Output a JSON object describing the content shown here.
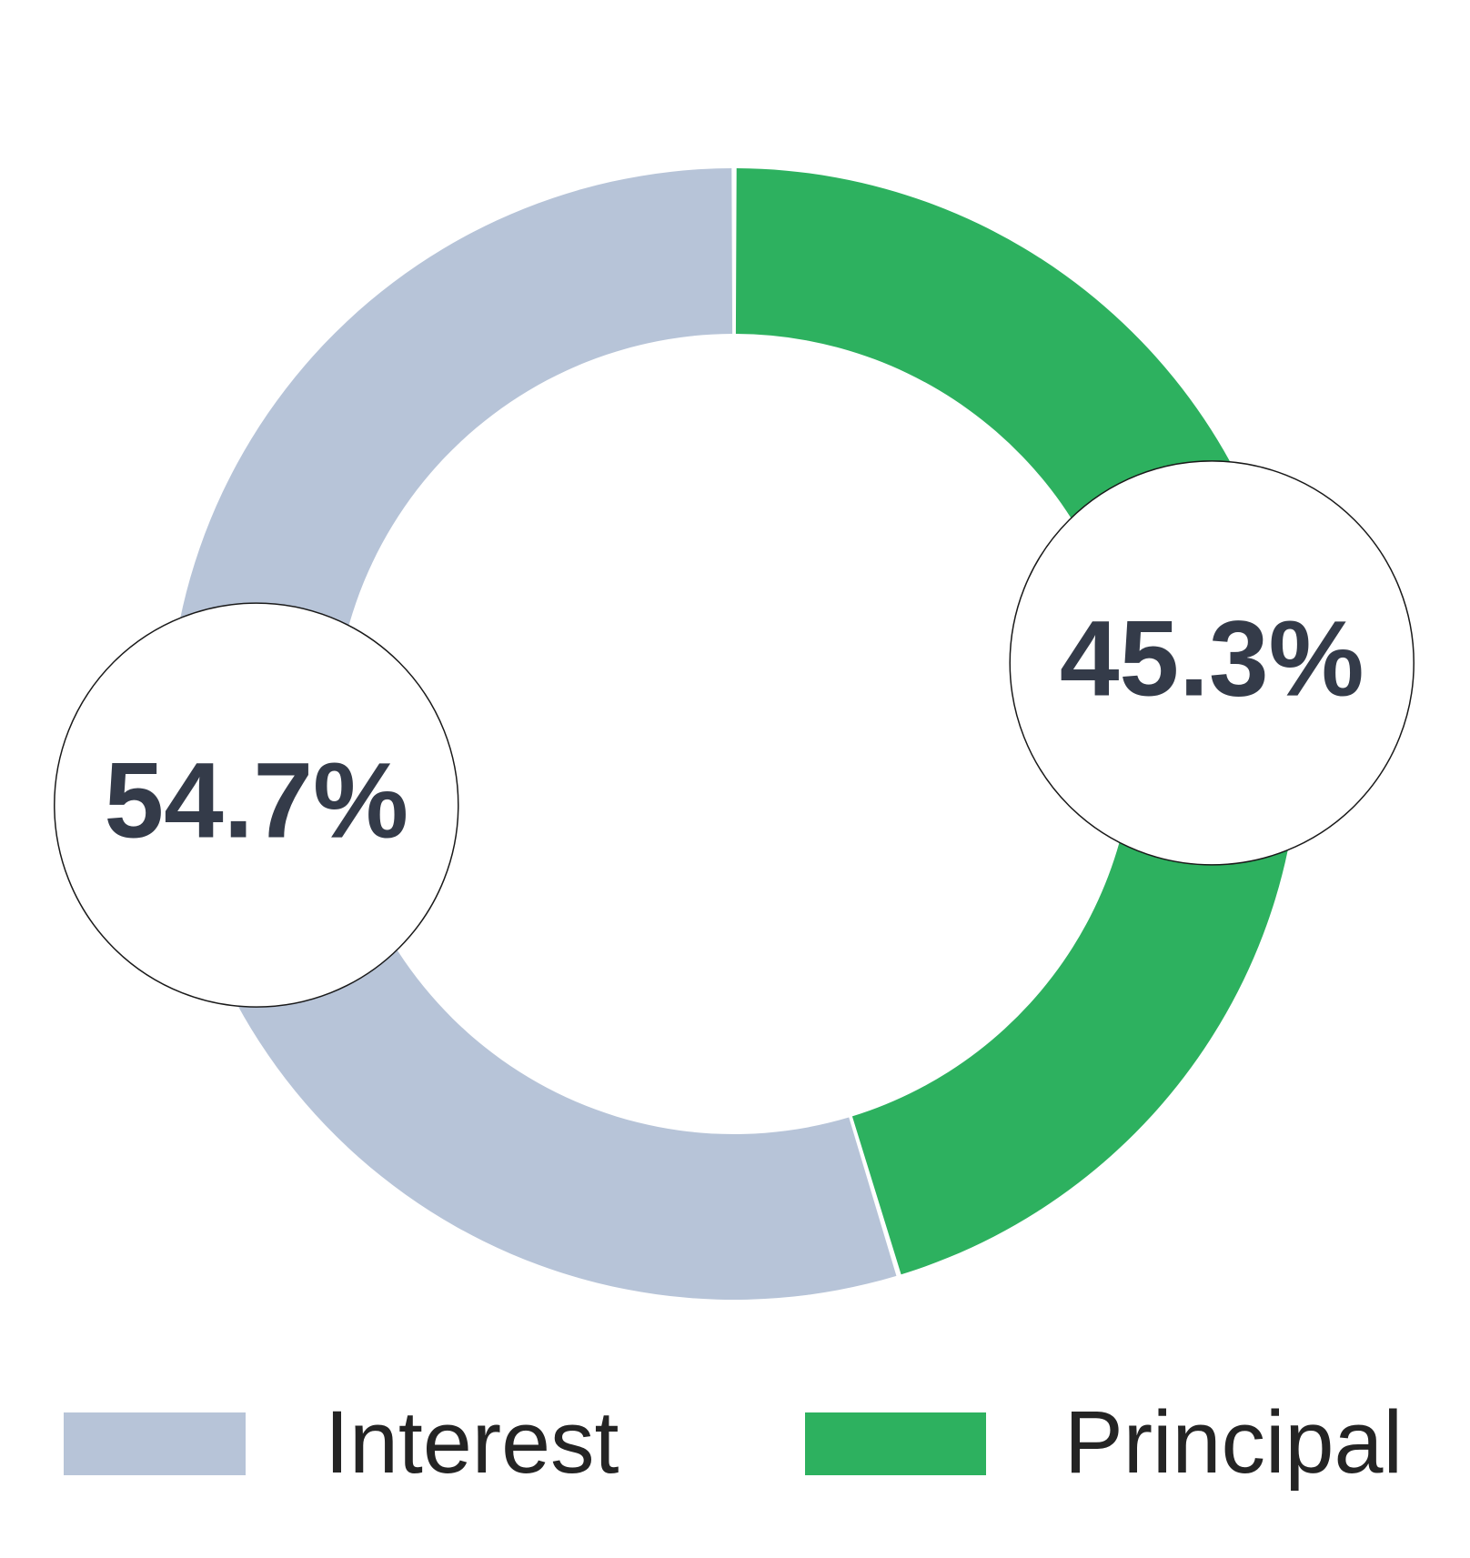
{
  "chart_data": {
    "type": "pie",
    "subtype": "donut",
    "categories": [
      "Interest",
      "Principal"
    ],
    "values": [
      54.7,
      45.3
    ],
    "colors": [
      "#b7c4d8",
      "#2db15f"
    ],
    "slice_labels": [
      "54.7%",
      "45.3%"
    ],
    "order_clockwise_from_top": [
      "Principal",
      "Interest"
    ],
    "start_angle": "12 o'clock",
    "direction": "clockwise",
    "donut_hole_ratio": 0.707,
    "legend_position": "bottom",
    "title": ""
  },
  "legend": {
    "items": [
      {
        "label": "Interest",
        "color": "#b7c4d8"
      },
      {
        "label": "Principal",
        "color": "#2db15f"
      }
    ]
  },
  "annotations": {
    "interest_percent": "54.7%",
    "principal_percent": "45.3%"
  },
  "styles": {
    "background": "#ffffff",
    "percent_text_color": "#343b49",
    "legend_text_color": "#242424",
    "label_circle_fill": "#ffffff",
    "label_circle_border": "#1a1a1a"
  }
}
